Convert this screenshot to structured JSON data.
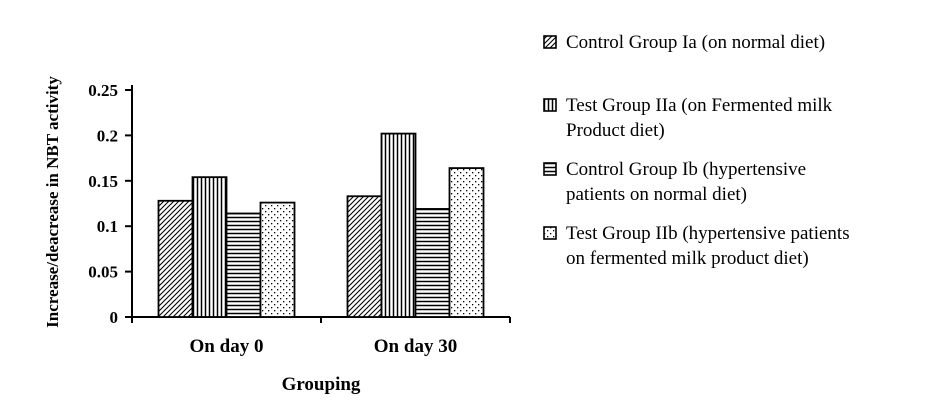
{
  "chart_data": {
    "type": "bar",
    "title": "",
    "categories": [
      "On day 0",
      "On day 30"
    ],
    "series": [
      {
        "name": "Control Group Ia (on normal diet)",
        "pattern": "diagonal",
        "values": [
          0.128,
          0.133
        ]
      },
      {
        "name": "Test Group IIa (on Fermented milk Product diet)",
        "pattern": "vertical",
        "values": [
          0.154,
          0.202
        ]
      },
      {
        "name": "Control Group Ib (hypertensive patients on normal diet)",
        "pattern": "horizontal",
        "values": [
          0.114,
          0.119
        ]
      },
      {
        "name": "Test Group IIb (hypertensive patients on fermented milk product diet)",
        "pattern": "dotted",
        "values": [
          0.126,
          0.164
        ]
      }
    ],
    "xlabel": "Grouping",
    "ylabel": "Increase/deacrease in NBT activity",
    "ylim": [
      0,
      0.25
    ],
    "ytick_step": 0.05,
    "ytick_labels": [
      "0",
      "0.05",
      "0.1",
      "0.15",
      "0.2",
      "0.25"
    ],
    "grid": false,
    "legend_position": "right",
    "bar_fill": "#ffffff",
    "bar_border": "#000000",
    "axis_color": "#000000",
    "text_color": "#000000"
  },
  "legend": {
    "items": [
      {
        "text": "Control Group Ia (on normal diet)",
        "swatch": "diagonal-hatch"
      },
      {
        "text": "Test Group IIa (on Fermented milk\nProduct diet)",
        "swatch": "vertical-lines"
      },
      {
        "text": "Control Group Ib (hypertensive\npatients on normal diet)",
        "swatch": "horizontal-lines"
      },
      {
        "text": "Test Group IIb (hypertensive patients\non fermented milk product diet)",
        "swatch": "dotted"
      }
    ]
  }
}
